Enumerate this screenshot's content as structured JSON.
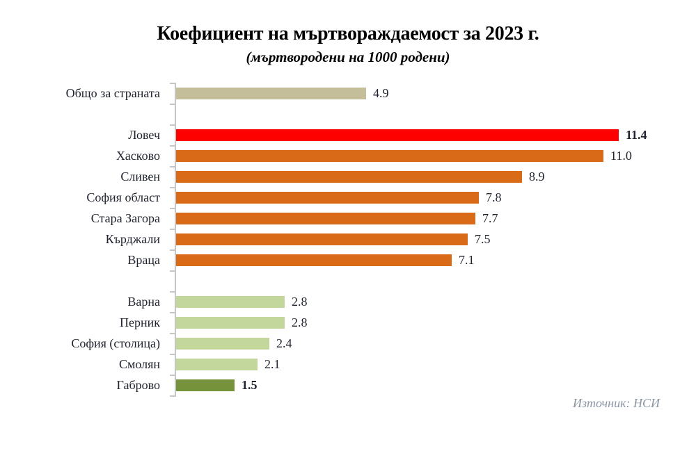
{
  "chart_data": {
    "type": "bar",
    "orientation": "horizontal",
    "title": "Коефициент на мъртвораждаемост за 2023 г.",
    "subtitle": "(мъртвородени на 1000 родени)",
    "source": "Източник: НСИ",
    "xlabel": "",
    "ylabel": "",
    "xlim": [
      0,
      12
    ],
    "grid": false,
    "value_labels": true,
    "legend": "none",
    "rows": [
      {
        "label": "Общо за страната",
        "value": 4.9,
        "color": "#c5be9a",
        "bold_value": false
      },
      {
        "spacer": true
      },
      {
        "label": "Ловеч",
        "value": 11.4,
        "color": "#fd0000",
        "bold_value": true
      },
      {
        "label": "Хасково",
        "value": 11.0,
        "color": "#d96a17",
        "bold_value": false
      },
      {
        "label": "Сливен",
        "value": 8.9,
        "color": "#d96a17",
        "bold_value": false
      },
      {
        "label": "София област",
        "value": 7.8,
        "color": "#d96a17",
        "bold_value": false
      },
      {
        "label": "Стара Загора",
        "value": 7.7,
        "color": "#d96a17",
        "bold_value": false
      },
      {
        "label": "Кърджали",
        "value": 7.5,
        "color": "#d96a17",
        "bold_value": false
      },
      {
        "label": "Враца",
        "value": 7.1,
        "color": "#d96a17",
        "bold_value": false
      },
      {
        "spacer": true
      },
      {
        "label": "Варна",
        "value": 2.8,
        "color": "#c3d69b",
        "bold_value": false
      },
      {
        "label": "Перник",
        "value": 2.8,
        "color": "#c3d69b",
        "bold_value": false
      },
      {
        "label": "София (столица)",
        "value": 2.4,
        "color": "#c3d69b",
        "bold_value": false
      },
      {
        "label": "Смолян",
        "value": 2.1,
        "color": "#c3d69b",
        "bold_value": false
      },
      {
        "label": "Габрово",
        "value": 1.5,
        "color": "#76933c",
        "bold_value": true
      }
    ],
    "colors": {
      "national_total": "#c5be9a",
      "highest_highlight": "#fd0000",
      "high_group": "#d96a17",
      "low_group": "#c3d69b",
      "lowest_highlight": "#76933c",
      "axis": "#c6c6c6",
      "text": "#20242e",
      "source_text": "#8c96a4"
    }
  }
}
